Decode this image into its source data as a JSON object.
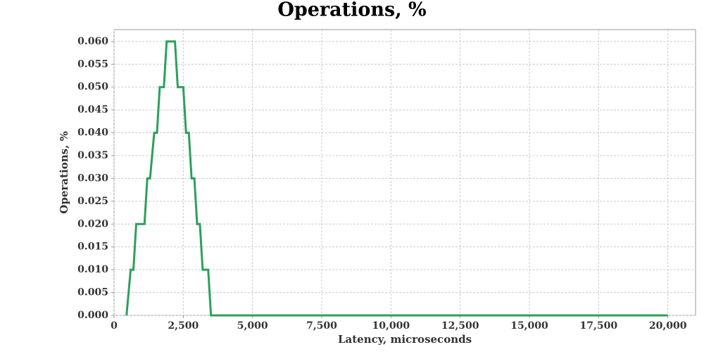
{
  "chart_data": {
    "type": "line",
    "title": "Operations, %",
    "x_label": "Latency, microseconds",
    "y_label": "Operations, %",
    "x": [
      450,
      600,
      700,
      800,
      1100,
      1200,
      1300,
      1450,
      1550,
      1650,
      1800,
      1900,
      2200,
      2300,
      2500,
      2600,
      2700,
      2800,
      2900,
      3000,
      3100,
      3200,
      3400,
      3500,
      20000
    ],
    "series": [
      {
        "name": "Operations, %",
        "color": "#2ca05a",
        "values": [
          0,
          0.01,
          0.01,
          0.02,
          0.02,
          0.03,
          0.03,
          0.04,
          0.04,
          0.05,
          0.05,
          0.06,
          0.06,
          0.05,
          0.05,
          0.04,
          0.04,
          0.03,
          0.03,
          0.02,
          0.02,
          0.01,
          0.01,
          0,
          0
        ]
      }
    ],
    "xlim": [
      0,
      21000
    ],
    "ylim": [
      0,
      0.0626
    ],
    "xticks": [
      0,
      {
        "value": 2500,
        "label": "2,500"
      },
      {
        "value": 5000,
        "label": "5,000"
      },
      {
        "value": 7500,
        "label": "7,500"
      },
      {
        "value": 10000,
        "label": "10,000"
      },
      {
        "value": 12500,
        "label": "12,500"
      },
      {
        "value": 15000,
        "label": "15,000"
      },
      {
        "value": 17500,
        "label": "17,500"
      },
      {
        "value": 20000,
        "label": "20,000"
      }
    ],
    "yticks": [
      {
        "value": 0,
        "label": "0.000"
      },
      {
        "value": 0.005,
        "label": "0.005"
      },
      {
        "value": 0.01,
        "label": "0.010"
      },
      {
        "value": 0.015,
        "label": "0.015"
      },
      {
        "value": 0.02,
        "label": "0.020"
      },
      {
        "value": 0.025,
        "label": "0.025"
      },
      {
        "value": 0.03,
        "label": "0.030"
      },
      {
        "value": 0.035,
        "label": "0.035"
      },
      {
        "value": 0.04,
        "label": "0.040"
      },
      {
        "value": 0.045,
        "label": "0.045"
      },
      {
        "value": 0.05,
        "label": "0.050"
      },
      {
        "value": 0.055,
        "label": "0.055"
      },
      {
        "value": 0.06,
        "label": "0.060"
      }
    ],
    "grid": true
  }
}
